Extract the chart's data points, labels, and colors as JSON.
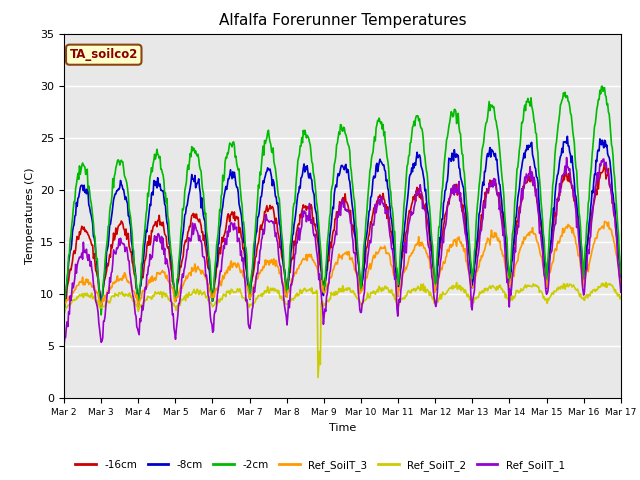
{
  "title": "Alfalfa Forerunner Temperatures",
  "xlabel": "Time",
  "ylabel": "Temperatures (C)",
  "ylim": [
    0,
    35
  ],
  "annotation_text": "TA_soilco2",
  "annotation_color": "#8b0000",
  "annotation_bg": "#ffffcc",
  "annotation_edge": "#8b4513",
  "series": [
    {
      "label": "-16cm",
      "color": "#cc0000",
      "lw": 1.2
    },
    {
      "label": "-8cm",
      "color": "#0000cc",
      "lw": 1.2
    },
    {
      "label": "-2cm",
      "color": "#00bb00",
      "lw": 1.2
    },
    {
      "label": "Ref_SoilT_3",
      "color": "#ff9900",
      "lw": 1.2
    },
    {
      "label": "Ref_SoilT_2",
      "color": "#cccc00",
      "lw": 1.2
    },
    {
      "label": "Ref_SoilT_1",
      "color": "#9900cc",
      "lw": 1.2
    }
  ],
  "xtick_labels": [
    "Mar 2",
    "Mar 3",
    "Mar 4",
    "Mar 5",
    "Mar 6",
    "Mar 7",
    "Mar 8",
    "Mar 9",
    "Mar 10",
    "Mar 11",
    "Mar 12",
    "Mar 13",
    "Mar 14",
    "Mar 15",
    "Mar 16",
    "Mar 17"
  ],
  "ytick_labels": [
    0,
    5,
    10,
    15,
    20,
    25,
    30,
    35
  ],
  "figsize": [
    6.4,
    4.8
  ],
  "dpi": 100
}
